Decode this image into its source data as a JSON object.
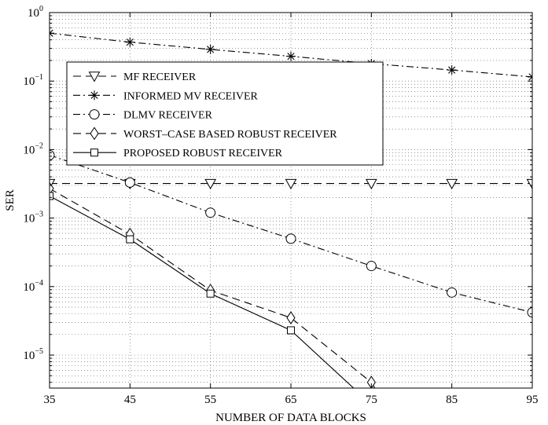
{
  "chart_data": {
    "type": "line",
    "title": "",
    "xlabel": "NUMBER OF DATA BLOCKS",
    "ylabel": "SER",
    "xlim": [
      35,
      95
    ],
    "ylim": [
      1e-06,
      1
    ],
    "yscale": "log",
    "grid": true,
    "legend_position": "top-left",
    "x_ticks": [
      35,
      45,
      55,
      65,
      75,
      85,
      95
    ],
    "y_ticks": [
      {
        "value": 1.0,
        "base": "10",
        "exp": "0"
      },
      {
        "value": 0.1,
        "base": "10",
        "exp": "−1"
      },
      {
        "value": 0.01,
        "base": "10",
        "exp": "−2"
      },
      {
        "value": 0.001,
        "base": "10",
        "exp": "−3"
      },
      {
        "value": 0.0001,
        "base": "10",
        "exp": "−4"
      },
      {
        "value": 1e-05,
        "base": "10",
        "exp": "−5"
      }
    ],
    "series": [
      {
        "name": "MF RECEIVER",
        "marker": "triangle-down",
        "dash": "dashed",
        "x": [
          35,
          45,
          55,
          65,
          75,
          85,
          95
        ],
        "y": [
          0.0032,
          0.0032,
          0.0032,
          0.0032,
          0.0032,
          0.0032,
          0.0032
        ]
      },
      {
        "name": "INFORMED MV RECEIVER",
        "marker": "asterisk",
        "dash": "dashdot",
        "x": [
          35,
          45,
          55,
          65,
          75,
          85,
          95
        ],
        "y": [
          0.5,
          0.37,
          0.29,
          0.23,
          0.18,
          0.145,
          0.115
        ]
      },
      {
        "name": "DLMV RECEIVER",
        "marker": "circle",
        "dash": "dashdot",
        "x": [
          35,
          45,
          55,
          65,
          75,
          85,
          95
        ],
        "y": [
          0.0083,
          0.0033,
          0.0012,
          0.0005,
          0.0002,
          8.2e-05,
          4.2e-05
        ]
      },
      {
        "name": "WORST–CASE BASED ROBUST RECEIVER",
        "marker": "diamond",
        "dash": "dashed",
        "x": [
          35,
          45,
          55,
          65,
          75,
          76.8
        ],
        "y": [
          0.0027,
          0.00058,
          8.8e-05,
          3.5e-05,
          4e-06,
          1.8e-06
        ]
      },
      {
        "name": "PROPOSED ROBUST RECEIVER",
        "marker": "square",
        "dash": "solid",
        "x": [
          35,
          45,
          55,
          65,
          75
        ],
        "y": [
          0.0021,
          0.00049,
          7.9e-05,
          2.3e-05,
          1.9e-06
        ]
      }
    ]
  }
}
